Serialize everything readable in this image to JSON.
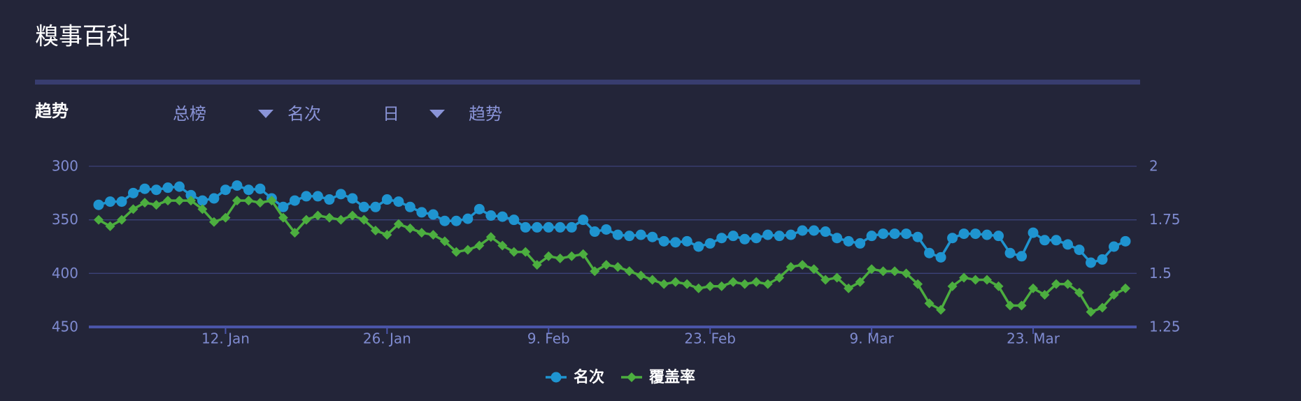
{
  "header": {
    "title": "糗事百科",
    "section": "趋势"
  },
  "toolbar": {
    "items": [
      "总榜",
      "名次",
      "日",
      "趋势"
    ]
  },
  "chart_data": {
    "type": "line",
    "x": [
      "1. Jan",
      "2. Jan",
      "3. Jan",
      "4. Jan",
      "5. Jan",
      "6. Jan",
      "7. Jan",
      "8. Jan",
      "9. Jan",
      "10. Jan",
      "11. Jan",
      "12. Jan",
      "13. Jan",
      "14. Jan",
      "15. Jan",
      "16. Jan",
      "17. Jan",
      "18. Jan",
      "19. Jan",
      "20. Jan",
      "21. Jan",
      "22. Jan",
      "23. Jan",
      "24. Jan",
      "25. Jan",
      "26. Jan",
      "27. Jan",
      "28. Jan",
      "29. Jan",
      "30. Jan",
      "31. Jan",
      "1. Feb",
      "2. Feb",
      "3. Feb",
      "4. Feb",
      "5. Feb",
      "6. Feb",
      "7. Feb",
      "8. Feb",
      "9. Feb",
      "10. Feb",
      "11. Feb",
      "12. Feb",
      "13. Feb",
      "14. Feb",
      "15. Feb",
      "16. Feb",
      "17. Feb",
      "18. Feb",
      "19. Feb",
      "20. Feb",
      "21. Feb",
      "22. Feb",
      "23. Feb",
      "24. Feb",
      "25. Feb",
      "26. Feb",
      "27. Feb",
      "28. Feb",
      "1. Mar",
      "2. Mar",
      "3. Mar",
      "4. Mar",
      "5. Mar",
      "6. Mar",
      "7. Mar",
      "8. Mar",
      "9. Mar",
      "10. Mar",
      "11. Mar",
      "12. Mar",
      "13. Mar",
      "14. Mar",
      "15. Mar",
      "16. Mar",
      "17. Mar",
      "18. Mar",
      "19. Mar",
      "20. Mar",
      "21. Mar",
      "22. Mar",
      "23. Mar",
      "24. Mar",
      "25. Mar",
      "26. Mar",
      "27. Mar",
      "28. Mar",
      "29. Mar",
      "30. Mar",
      "31. Mar"
    ],
    "xticks": [
      "12. Jan",
      "26. Jan",
      "9. Feb",
      "23. Feb",
      "9. Mar",
      "23. Mar"
    ],
    "ylim": [
      300,
      450
    ],
    "y_reversed": true,
    "yticks": [
      300,
      350,
      400,
      450
    ],
    "y2lim": [
      1.25,
      2
    ],
    "y2ticks": [
      2,
      1.75,
      1.5,
      1.25
    ],
    "grid": true,
    "legend": "bottom",
    "series": [
      {
        "name": "名次",
        "color": "#1f94d0",
        "marker": "circle",
        "values": [
          336,
          333,
          333,
          325,
          321,
          322,
          320,
          319,
          327,
          332,
          330,
          322,
          318,
          322,
          321,
          330,
          338,
          332,
          328,
          328,
          331,
          326,
          330,
          338,
          338,
          331,
          333,
          338,
          343,
          345,
          351,
          351,
          349,
          340,
          346,
          347,
          350,
          357,
          357,
          357,
          357,
          357,
          350,
          361,
          359,
          364,
          365,
          364,
          366,
          370,
          371,
          370,
          375,
          372,
          367,
          365,
          368,
          367,
          364,
          365,
          364,
          360,
          360,
          361,
          367,
          370,
          372,
          365,
          363,
          363,
          363,
          366,
          381,
          385,
          367,
          363,
          363,
          364,
          365,
          381,
          384,
          362,
          369,
          369,
          373,
          378,
          390,
          387,
          375,
          370
        ]
      },
      {
        "name": "覆盖率",
        "color": "#4cae3f",
        "marker": "diamond",
        "axis": "y2",
        "values": [
          1.75,
          1.72,
          1.75,
          1.8,
          1.83,
          1.82,
          1.84,
          1.84,
          1.84,
          1.8,
          1.74,
          1.76,
          1.84,
          1.84,
          1.83,
          1.84,
          1.76,
          1.69,
          1.75,
          1.77,
          1.76,
          1.75,
          1.77,
          1.75,
          1.7,
          1.68,
          1.73,
          1.71,
          1.69,
          1.68,
          1.65,
          1.6,
          1.61,
          1.63,
          1.67,
          1.63,
          1.6,
          1.6,
          1.54,
          1.58,
          1.57,
          1.58,
          1.59,
          1.51,
          1.54,
          1.53,
          1.51,
          1.49,
          1.47,
          1.45,
          1.46,
          1.45,
          1.43,
          1.44,
          1.44,
          1.46,
          1.45,
          1.46,
          1.45,
          1.48,
          1.53,
          1.54,
          1.52,
          1.47,
          1.48,
          1.43,
          1.46,
          1.52,
          1.51,
          1.51,
          1.5,
          1.45,
          1.36,
          1.33,
          1.44,
          1.48,
          1.47,
          1.47,
          1.44,
          1.35,
          1.35,
          1.43,
          1.4,
          1.45,
          1.45,
          1.41,
          1.32,
          1.34,
          1.4,
          1.43
        ]
      }
    ]
  }
}
